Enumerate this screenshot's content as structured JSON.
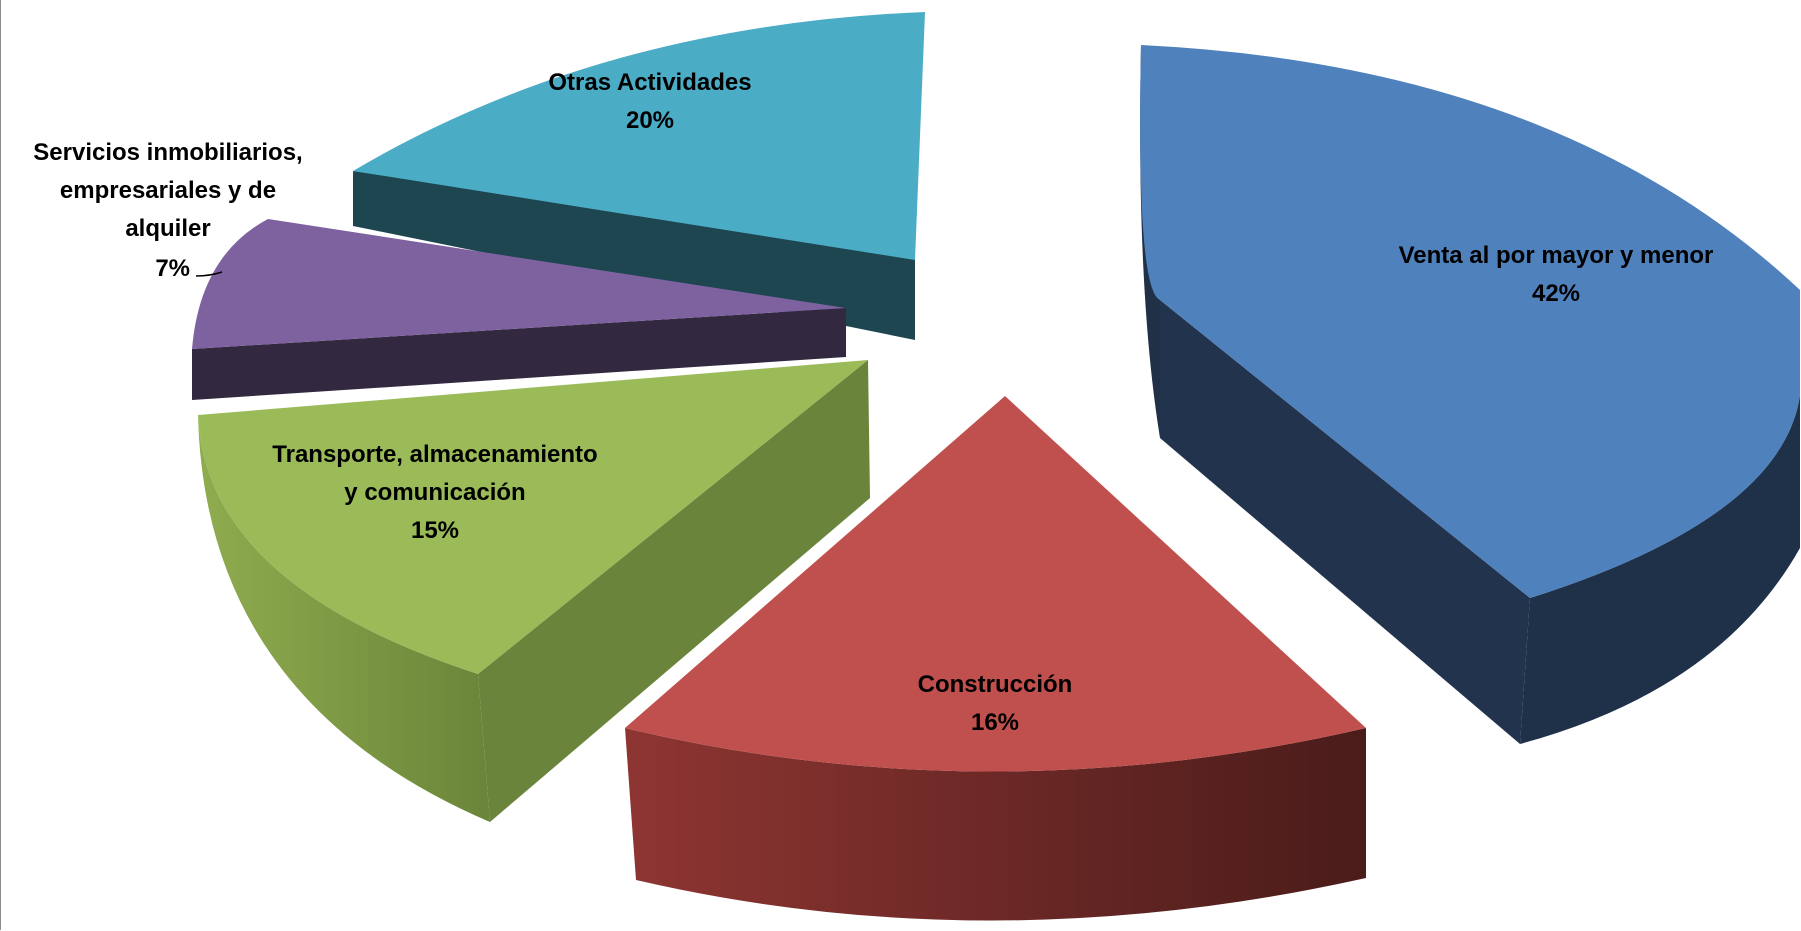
{
  "chart_data": {
    "type": "pie",
    "title": "",
    "categories": [
      "Venta al por mayor y menor",
      "Construcción",
      "Transporte, almacenamiento y comunicación",
      "Servicios inmobiliarios, empresariales y de alquiler",
      "Otras Actividades"
    ],
    "values": [
      42,
      16,
      15,
      7,
      20
    ],
    "unit": "%",
    "exploded": true,
    "style": "3d",
    "colors": [
      "#4f81bd",
      "#c0504d",
      "#9bbb59",
      "#8064a2",
      "#4bacc6"
    ],
    "legend": "none",
    "labels": {
      "venta": {
        "name": "Venta al por mayor y menor",
        "pct": "42%"
      },
      "construccion": {
        "name": "Construcción",
        "pct": "16%"
      },
      "transporte": {
        "line1": "Transporte, almacenamiento",
        "line2": "y comunicación",
        "pct": "15%"
      },
      "servicios": {
        "line1": "Servicios inmobiliarios,",
        "line2": "empresariales y de",
        "line3": "alquiler",
        "pct": "7%"
      },
      "otras": {
        "name": "Otras Actividades",
        "pct": "20%"
      }
    }
  }
}
